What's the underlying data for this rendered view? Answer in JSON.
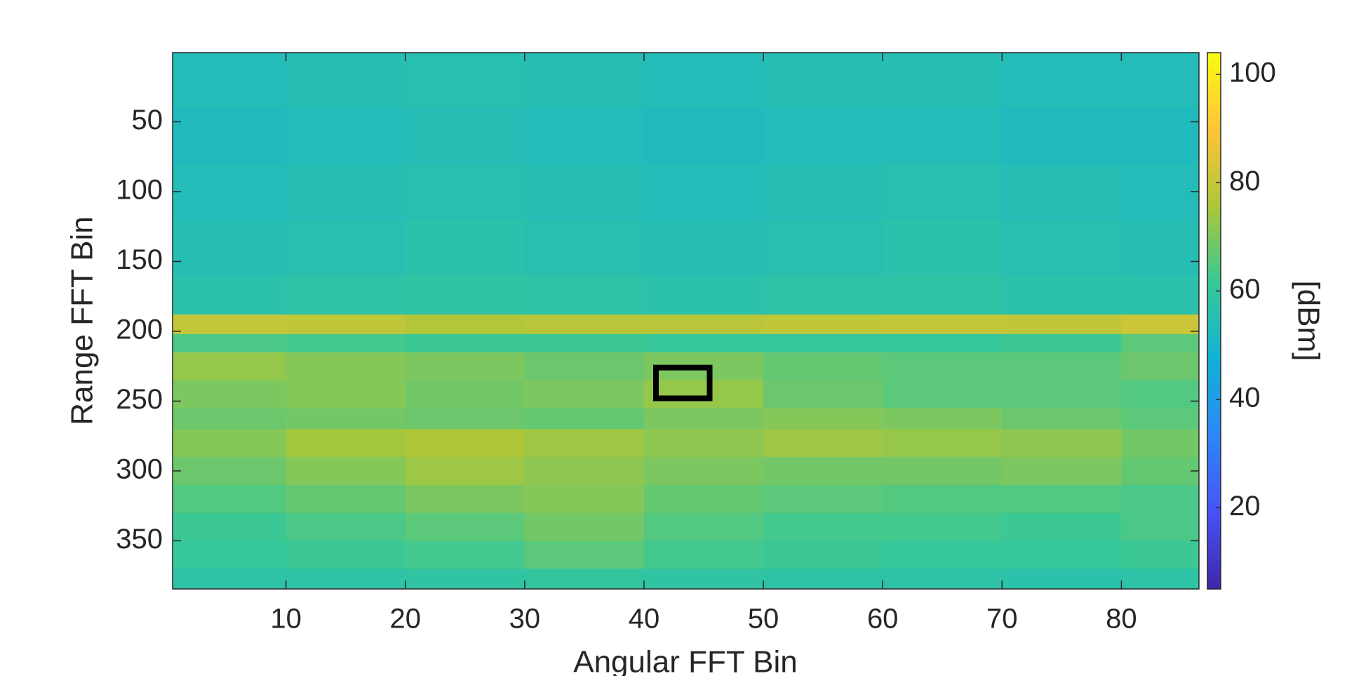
{
  "chart_data": {
    "type": "heatmap",
    "xlabel": "Angular FFT Bin",
    "ylabel": "Range FFT Bin",
    "colorbar_label": "[dBm]",
    "colormap": "parula",
    "x_edges": [
      0.5,
      10,
      20,
      30,
      40,
      50,
      60,
      70,
      80,
      86.5
    ],
    "y_edges": [
      0.5,
      40,
      80,
      120,
      160,
      188,
      202,
      215,
      235,
      255,
      270,
      290,
      310,
      330,
      350,
      370,
      384.5
    ],
    "z": [
      [
        54,
        55,
        56,
        55,
        54,
        55,
        55,
        54,
        54
      ],
      [
        53,
        54,
        55,
        54,
        53,
        54,
        54,
        53,
        53
      ],
      [
        54,
        55,
        56,
        55,
        54,
        55,
        56,
        55,
        54
      ],
      [
        55,
        56,
        57,
        56,
        55,
        56,
        57,
        56,
        55
      ],
      [
        57,
        58,
        59,
        58,
        57,
        58,
        58,
        57,
        57
      ],
      [
        80,
        79,
        77,
        78,
        78,
        79,
        80,
        79,
        81
      ],
      [
        64,
        63,
        62,
        62,
        61,
        61,
        61,
        62,
        66
      ],
      [
        73,
        71,
        70,
        68,
        70,
        67,
        66,
        66,
        68
      ],
      [
        70,
        71,
        69,
        70,
        73,
        68,
        66,
        66,
        65
      ],
      [
        68,
        69,
        68,
        67,
        70,
        71,
        70,
        68,
        66
      ],
      [
        71,
        75,
        76,
        74,
        72,
        74,
        73,
        72,
        69
      ],
      [
        68,
        71,
        74,
        72,
        70,
        69,
        69,
        70,
        67
      ],
      [
        65,
        67,
        70,
        71,
        67,
        66,
        65,
        65,
        64
      ],
      [
        62,
        64,
        66,
        69,
        65,
        63,
        63,
        62,
        64
      ],
      [
        61,
        62,
        63,
        66,
        63,
        62,
        61,
        61,
        62
      ],
      [
        58,
        58,
        59,
        60,
        59,
        58,
        58,
        57,
        58
      ]
    ],
    "clim": [
      5,
      104
    ],
    "cticks": [
      20,
      40,
      60,
      80,
      100
    ],
    "xlim": [
      0.5,
      86.5
    ],
    "xticks": [
      10,
      20,
      30,
      40,
      50,
      60,
      70,
      80
    ],
    "ylim": [
      0.5,
      384.5
    ],
    "yticks": [
      50,
      100,
      150,
      200,
      250,
      300,
      350
    ],
    "y_reversed": true,
    "highlight": {
      "x": [
        41,
        45.5
      ],
      "y": [
        226,
        248
      ]
    }
  }
}
